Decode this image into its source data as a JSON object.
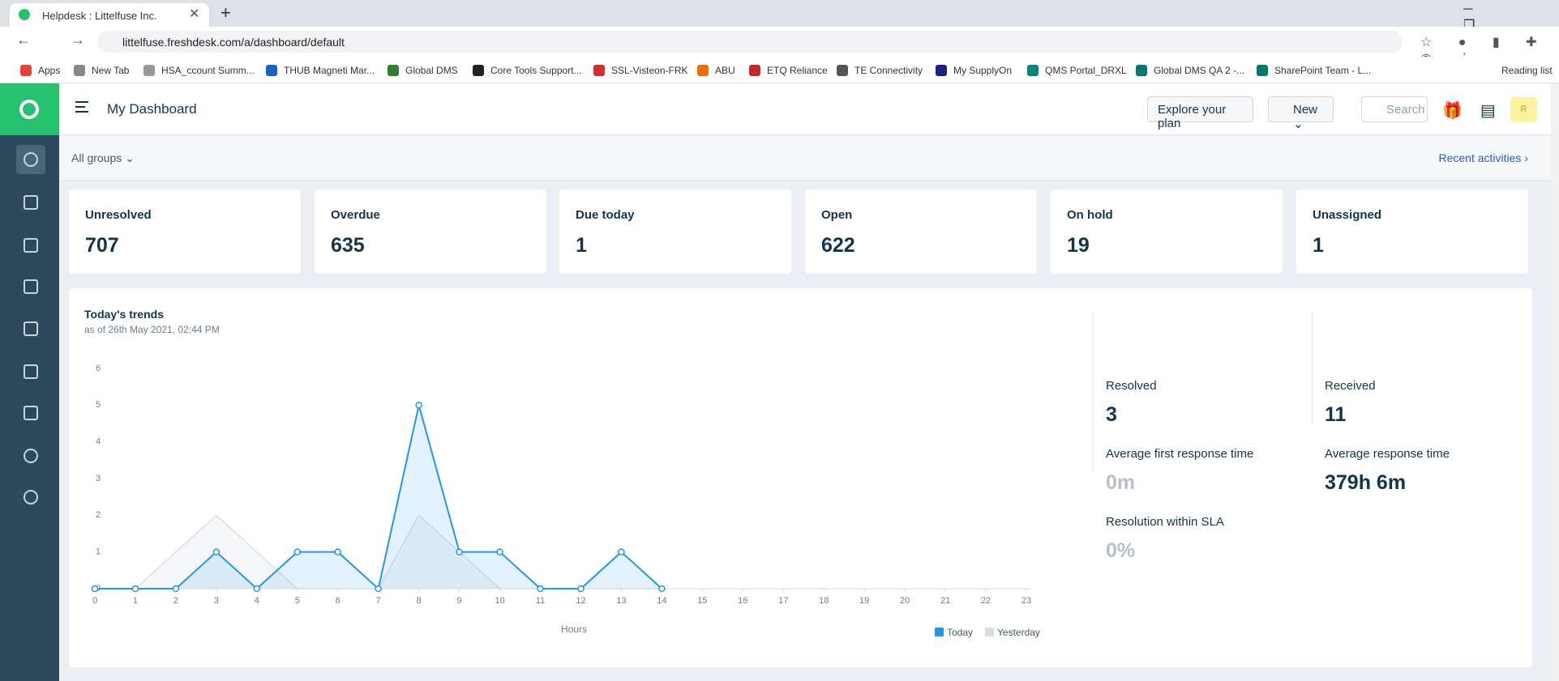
{
  "browser": {
    "tab_title": "Helpdesk : Littelfuse Inc.",
    "url": "littelfuse.freshdesk.com/a/dashboard/default",
    "bookmarks": [
      "Apps",
      "New Tab",
      "HSA_ccount Summ...",
      "THUB Magneti Mar...",
      "Global DMS",
      "Core Tools Support...",
      "SSL-Visteon-FRK",
      "ABU",
      "ETQ Reliance",
      "TE Connectivity",
      "My SupplyOn",
      "QMS Portal_DRXL",
      "Global DMS QA 2 -...",
      "SharePoint Team - L..."
    ],
    "reading_list": "Reading list"
  },
  "header": {
    "title": "My Dashboard",
    "explore": "Explore your plan",
    "new": "New",
    "search": "Search",
    "avatar": "R"
  },
  "filter": {
    "groups": "All groups",
    "recent": "Recent activities"
  },
  "cards": [
    {
      "label": "Unresolved",
      "value": 707
    },
    {
      "label": "Overdue",
      "value": 635
    },
    {
      "label": "Due today",
      "value": 1
    },
    {
      "label": "Open",
      "value": 622
    },
    {
      "label": "On hold",
      "value": 19
    },
    {
      "label": "Unassigned",
      "value": 1
    }
  ],
  "chart_data": {
    "type": "line",
    "title": "Today's trends",
    "subtitle": "as of 26th May 2021, 02:44 PM",
    "x_label": "Hours",
    "x": [
      0,
      1,
      2,
      3,
      4,
      5,
      6,
      7,
      8,
      9,
      10,
      11,
      12,
      13,
      14,
      15,
      16,
      17,
      18,
      19,
      20,
      21,
      22,
      23
    ],
    "xlim": [
      0,
      23
    ],
    "xticks": [
      0,
      1,
      2,
      3,
      4,
      5,
      6,
      7,
      8,
      9,
      10,
      11,
      12,
      13,
      14,
      15,
      16,
      17,
      18,
      19,
      20,
      21,
      22,
      23
    ],
    "ylim": [
      0,
      6
    ],
    "yticks": [
      0,
      1,
      2,
      3,
      4,
      5,
      6
    ],
    "series": [
      {
        "name": "Today",
        "color": "#2196f3",
        "values": [
          0,
          0,
          0,
          1,
          0,
          1,
          1,
          0,
          5,
          1,
          1,
          0,
          0,
          1,
          0,
          null,
          null,
          null,
          null,
          null,
          null,
          null,
          null,
          null
        ]
      },
      {
        "name": "Yesterday",
        "color": "#d5dce2",
        "values": [
          0,
          0,
          1,
          2,
          1,
          0,
          0,
          0,
          2,
          1,
          0,
          0,
          0,
          0,
          0,
          0,
          0,
          0,
          0,
          0,
          0,
          0,
          0,
          0
        ]
      }
    ]
  },
  "stats": [
    {
      "label": "Resolved",
      "value": "3"
    },
    {
      "label": "Received",
      "value": "11"
    },
    {
      "label": "Average first response time",
      "value": "0m"
    },
    {
      "label": "Average response time",
      "value": "379h 6m"
    },
    {
      "label": "Resolution within SLA",
      "value": "0%"
    }
  ]
}
